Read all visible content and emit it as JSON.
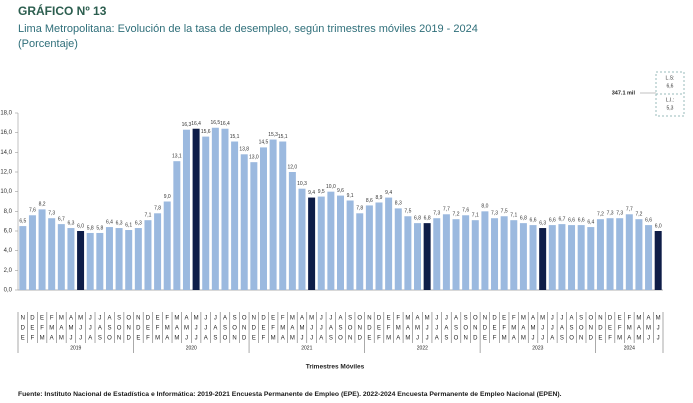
{
  "chart_data": {
    "type": "bar",
    "title": "GRÁFICO Nº 13",
    "subtitle": "Lima Metropolitana: Evolución de la tasa de desempleo, según trimestres móviles 2019 - 2024",
    "unit_note": "(Porcentaje)",
    "x_label": "Trimestres Móviles",
    "source": "Fuente: Instituto Nacional de Estadística e Informática: 2019-2021 Encuesta Permanente de Empleo (EPE). 2022-2024 Encuesta Permanente de Empleo Nacional (EPEN).",
    "annotations": [
      "347.1 mil",
      "L.S:",
      "6,6",
      "L.I.:",
      "5,3"
    ],
    "years": [
      "2019",
      "2020",
      "2021",
      "2022",
      "2023",
      "2024"
    ],
    "categories": [
      [
        "N",
        "D",
        "E"
      ],
      [
        "D",
        "E",
        "F"
      ],
      [
        "E",
        "F",
        "M"
      ],
      [
        "F",
        "M",
        "A"
      ],
      [
        "M",
        "A",
        "M"
      ],
      [
        "A",
        "M",
        "J"
      ],
      [
        "M",
        "J",
        "J"
      ],
      [
        "J",
        "J",
        "A"
      ],
      [
        "J",
        "A",
        "S"
      ],
      [
        "A",
        "S",
        "O"
      ],
      [
        "S",
        "O",
        "N"
      ],
      [
        "O",
        "N",
        "D"
      ],
      [
        "N",
        "D",
        "E"
      ],
      [
        "D",
        "E",
        "F"
      ],
      [
        "E",
        "F",
        "M"
      ],
      [
        "F",
        "M",
        "A"
      ],
      [
        "M",
        "A",
        "M"
      ],
      [
        "A",
        "M",
        "J"
      ],
      [
        "M",
        "J",
        "J"
      ],
      [
        "J",
        "J",
        "A"
      ],
      [
        "J",
        "A",
        "S"
      ],
      [
        "A",
        "S",
        "O"
      ],
      [
        "S",
        "O",
        "N"
      ],
      [
        "O",
        "N",
        "D"
      ],
      [
        "N",
        "D",
        "E"
      ],
      [
        "D",
        "E",
        "F"
      ],
      [
        "E",
        "F",
        "M"
      ],
      [
        "F",
        "M",
        "A"
      ],
      [
        "M",
        "A",
        "M"
      ],
      [
        "A",
        "M",
        "J"
      ],
      [
        "M",
        "J",
        "J"
      ],
      [
        "J",
        "J",
        "A"
      ],
      [
        "J",
        "A",
        "S"
      ],
      [
        "A",
        "S",
        "O"
      ],
      [
        "S",
        "O",
        "N"
      ],
      [
        "O",
        "N",
        "D"
      ],
      [
        "N",
        "D",
        "E"
      ],
      [
        "D",
        "E",
        "F"
      ],
      [
        "E",
        "F",
        "M"
      ],
      [
        "F",
        "M",
        "A"
      ],
      [
        "M",
        "A",
        "M"
      ],
      [
        "A",
        "M",
        "J"
      ],
      [
        "M",
        "J",
        "J"
      ],
      [
        "J",
        "J",
        "A"
      ],
      [
        "J",
        "A",
        "S"
      ],
      [
        "A",
        "S",
        "O"
      ],
      [
        "S",
        "O",
        "N"
      ],
      [
        "O",
        "N",
        "D"
      ],
      [
        "N",
        "D",
        "E"
      ],
      [
        "D",
        "E",
        "F"
      ],
      [
        "E",
        "F",
        "M"
      ],
      [
        "F",
        "M",
        "A"
      ],
      [
        "M",
        "A",
        "M"
      ],
      [
        "A",
        "M",
        "J"
      ],
      [
        "M",
        "J",
        "J"
      ],
      [
        "J",
        "J",
        "A"
      ],
      [
        "J",
        "A",
        "S"
      ],
      [
        "A",
        "S",
        "O"
      ],
      [
        "S",
        "O",
        "N"
      ],
      [
        "O",
        "N",
        "D"
      ],
      [
        "N",
        "D",
        "E"
      ],
      [
        "D",
        "E",
        "F"
      ],
      [
        "E",
        "F",
        "M"
      ],
      [
        "F",
        "M",
        "A"
      ],
      [
        "M",
        "A",
        "M"
      ],
      [
        "A",
        "M",
        "J"
      ],
      [
        "M",
        "J",
        "J"
      ]
    ],
    "values": [
      6.5,
      7.6,
      8.2,
      7.3,
      6.7,
      6.3,
      6.0,
      5.8,
      5.8,
      6.4,
      6.3,
      6.1,
      6.3,
      7.1,
      7.8,
      9.0,
      13.1,
      16.3,
      16.4,
      15.6,
      16.5,
      16.4,
      15.1,
      13.8,
      13.0,
      14.5,
      15.3,
      15.1,
      12.0,
      10.3,
      9.4,
      9.5,
      10.0,
      9.6,
      9.1,
      7.8,
      8.6,
      8.9,
      9.4,
      8.3,
      7.5,
      6.8,
      6.8,
      7.3,
      7.7,
      7.2,
      7.6,
      7.1,
      8.0,
      7.3,
      7.5,
      7.1,
      6.8,
      6.6,
      6.3,
      6.6,
      6.7,
      6.6,
      6.6,
      6.4,
      7.2,
      7.3,
      7.3,
      7.7,
      7.2,
      6.6,
      6.0
    ],
    "value_labels": [
      "6,5",
      "7,6",
      "8,2",
      "7,3",
      "6,7",
      "6,3",
      "6,0",
      "5,8",
      "5,8",
      "6,4",
      "6,3",
      "6,1",
      "6,3",
      "7,1",
      "7,8",
      "9,0",
      "13,1",
      "16,3",
      "16,4",
      "15,6",
      "16,5",
      "16,4",
      "15,1",
      "13,8",
      "13,0",
      "14,5",
      "15,3",
      "15,1",
      "12,0",
      "10,3",
      "9,4",
      "9,5",
      "10,0",
      "9,6",
      "9,1",
      "7,8",
      "8,6",
      "8,9",
      "9,4",
      "8,3",
      "7,5",
      "6,8",
      "6,8",
      "7,3",
      "7,7",
      "7,2",
      "7,6",
      "7,1",
      "8,0",
      "7,3",
      "7,5",
      "7,1",
      "6,8",
      "6,6",
      "6,3",
      "6,6",
      "6,7",
      "6,6",
      "6,6",
      "6,4",
      "7,2",
      "7,3",
      "7,3",
      "7,7",
      "7,2",
      "6,6",
      "6,0"
    ],
    "colors": [
      "#9bb9df",
      "#9bb9df",
      "#9bb9df",
      "#9bb9df",
      "#9bb9df",
      "#9bb9df",
      "#0e1d48",
      "#9bb9df",
      "#9bb9df",
      "#9bb9df",
      "#9bb9df",
      "#9bb9df",
      "#9bb9df",
      "#9bb9df",
      "#9bb9df",
      "#9bb9df",
      "#9bb9df",
      "#9bb9df",
      "#0e1d48",
      "#9bb9df",
      "#9bb9df",
      "#9bb9df",
      "#9bb9df",
      "#9bb9df",
      "#9bb9df",
      "#9bb9df",
      "#9bb9df",
      "#9bb9df",
      "#9bb9df",
      "#9bb9df",
      "#0e1d48",
      "#9bb9df",
      "#9bb9df",
      "#9bb9df",
      "#9bb9df",
      "#9bb9df",
      "#9bb9df",
      "#9bb9df",
      "#9bb9df",
      "#9bb9df",
      "#9bb9df",
      "#9bb9df",
      "#0e1d48",
      "#9bb9df",
      "#9bb9df",
      "#9bb9df",
      "#9bb9df",
      "#9bb9df",
      "#9bb9df",
      "#9bb9df",
      "#9bb9df",
      "#9bb9df",
      "#9bb9df",
      "#9bb9df",
      "#0e1d48",
      "#9bb9df",
      "#9bb9df",
      "#9bb9df",
      "#9bb9df",
      "#9bb9df",
      "#9bb9df",
      "#9bb9df",
      "#9bb9df",
      "#9bb9df",
      "#9bb9df",
      "#9bb9df",
      "#0e1d48"
    ],
    "ylim": [
      0,
      18
    ],
    "yticks": [
      {
        "value": 0,
        "label": "0,0"
      },
      {
        "value": 2,
        "label": "2,0"
      },
      {
        "value": 4,
        "label": "4,0"
      },
      {
        "value": 6,
        "label": "6,0"
      },
      {
        "value": 8,
        "label": "8,0"
      },
      {
        "value": 10,
        "label": "10,0"
      },
      {
        "value": 12,
        "label": "12,0"
      },
      {
        "value": 14,
        "label": "14,0"
      },
      {
        "value": 16,
        "label": "16,0"
      },
      {
        "value": 18,
        "label": "18,0"
      }
    ]
  }
}
